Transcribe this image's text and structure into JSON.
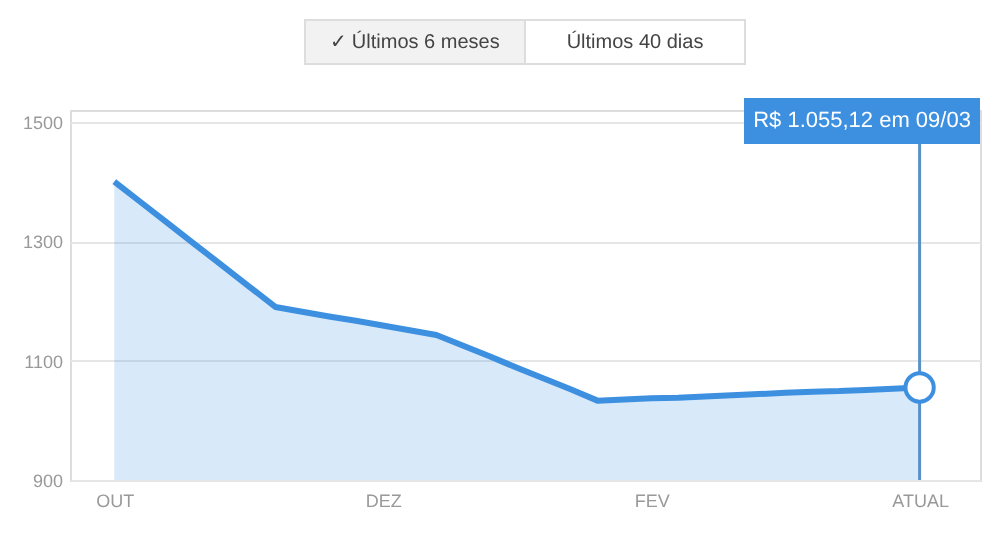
{
  "chart_data": {
    "type": "area",
    "categories": [
      "OUT",
      null,
      null,
      null,
      null,
      null,
      null,
      null,
      null,
      null,
      "DEZ",
      null,
      null,
      null,
      null,
      null,
      null,
      null,
      null,
      null,
      "FEV",
      null,
      null,
      null,
      null,
      null,
      null,
      null,
      null,
      null,
      "ATUAL"
    ],
    "series": [
      {
        "color": "#3d8fe0",
        "values": [
          1400,
          1365,
          1330,
          1295,
          1260,
          1225,
          1190,
          1182,
          1174,
          1167,
          1159,
          1151,
          1143,
          1125,
          1107,
          1088,
          1070,
          1052,
          1033,
          1035,
          1037,
          1038,
          1040,
          1042,
          1044,
          1046,
          1048,
          1049,
          1051,
          1053,
          1055
        ]
      }
    ],
    "ylim": [
      900,
      1520
    ],
    "yticks": [
      900,
      1100,
      1300,
      1500
    ],
    "grid": "y",
    "marker": "none",
    "line_style": "solid",
    "ref_lines": [
      {
        "axis": "x",
        "value": "ATUAL",
        "color": "#5b8fc7"
      }
    ],
    "annotations": [
      "✓ Últimos 6 meses",
      "Últimos 40 dias",
      "R$ 1.055,12 em 09/03"
    ]
  }
}
